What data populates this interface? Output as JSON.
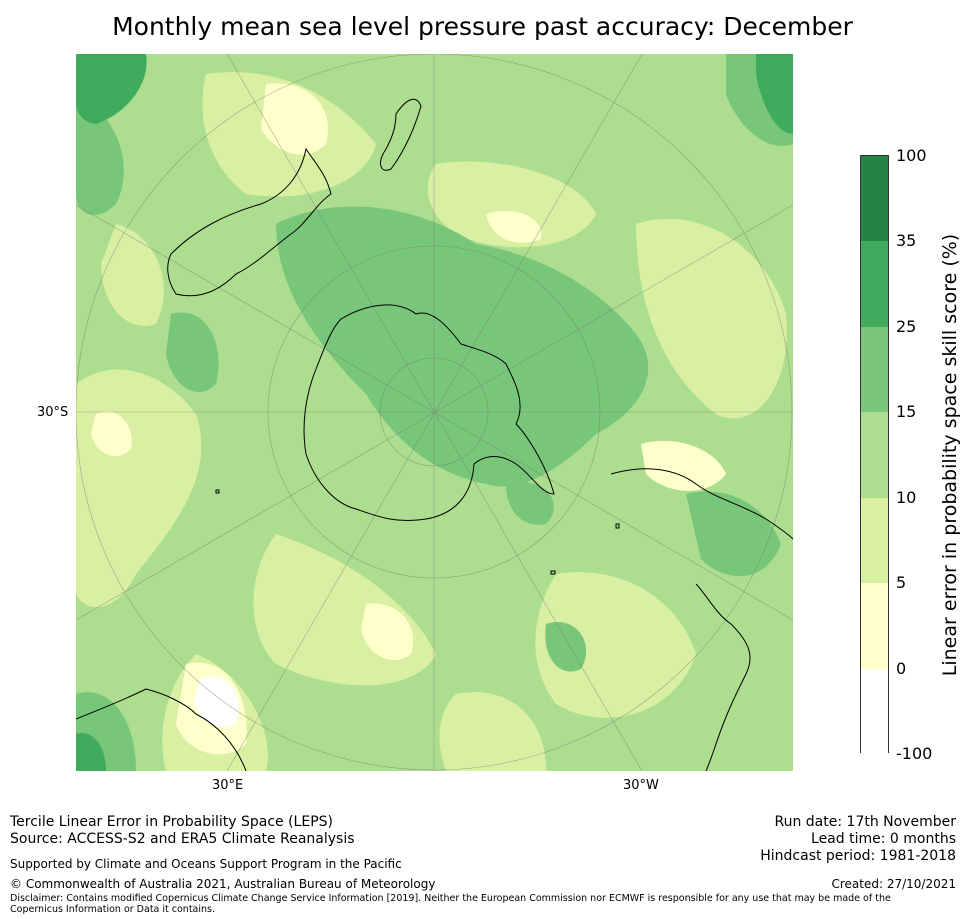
{
  "title": "Monthly mean sea level pressure past accuracy: December",
  "map": {
    "projection": "south polar stereographic",
    "tick_labels": {
      "left": "30°S",
      "bottom_left": "30°E",
      "bottom_right": "30°W"
    }
  },
  "colorbar": {
    "title": "Linear error in probability space skill score (%)",
    "tick_labels": [
      "-100",
      "0",
      "5",
      "10",
      "15",
      "25",
      "35",
      "100"
    ],
    "bins": [
      {
        "from": -100,
        "to": 0,
        "color": "#ffffff"
      },
      {
        "from": 0,
        "to": 5,
        "color": "#ffffcc"
      },
      {
        "from": 5,
        "to": 10,
        "color": "#d9f0a3"
      },
      {
        "from": 10,
        "to": 15,
        "color": "#addd8e"
      },
      {
        "from": 15,
        "to": 25,
        "color": "#78c679"
      },
      {
        "from": 25,
        "to": 35,
        "color": "#41ab5d"
      },
      {
        "from": 35,
        "to": 100,
        "color": "#238443"
      }
    ]
  },
  "footer": {
    "left_line1": "Tercile Linear Error in Probability Space (LEPS)",
    "left_line2": "Source: ACCESS-S2 and ERA5 Climate Reanalysis",
    "support": "Supported by Climate and Oceans Support Program in the Pacific",
    "copyright": "© Commonwealth of Australia 2021, Australian Bureau of Meteorology",
    "disclaimer": "Disclaimer: Contains modified Copernicus Climate Change Service Information [2019]. Neither the European Commission nor ECMWF is responsible for any use that may be made of the Copernicus Information or Data it contains.",
    "run_date": "Run date: 17th November",
    "lead_time": "Lead time: 0 months",
    "hindcast": "Hindcast period: 1981-2018",
    "created": "Created: 27/10/2021"
  }
}
